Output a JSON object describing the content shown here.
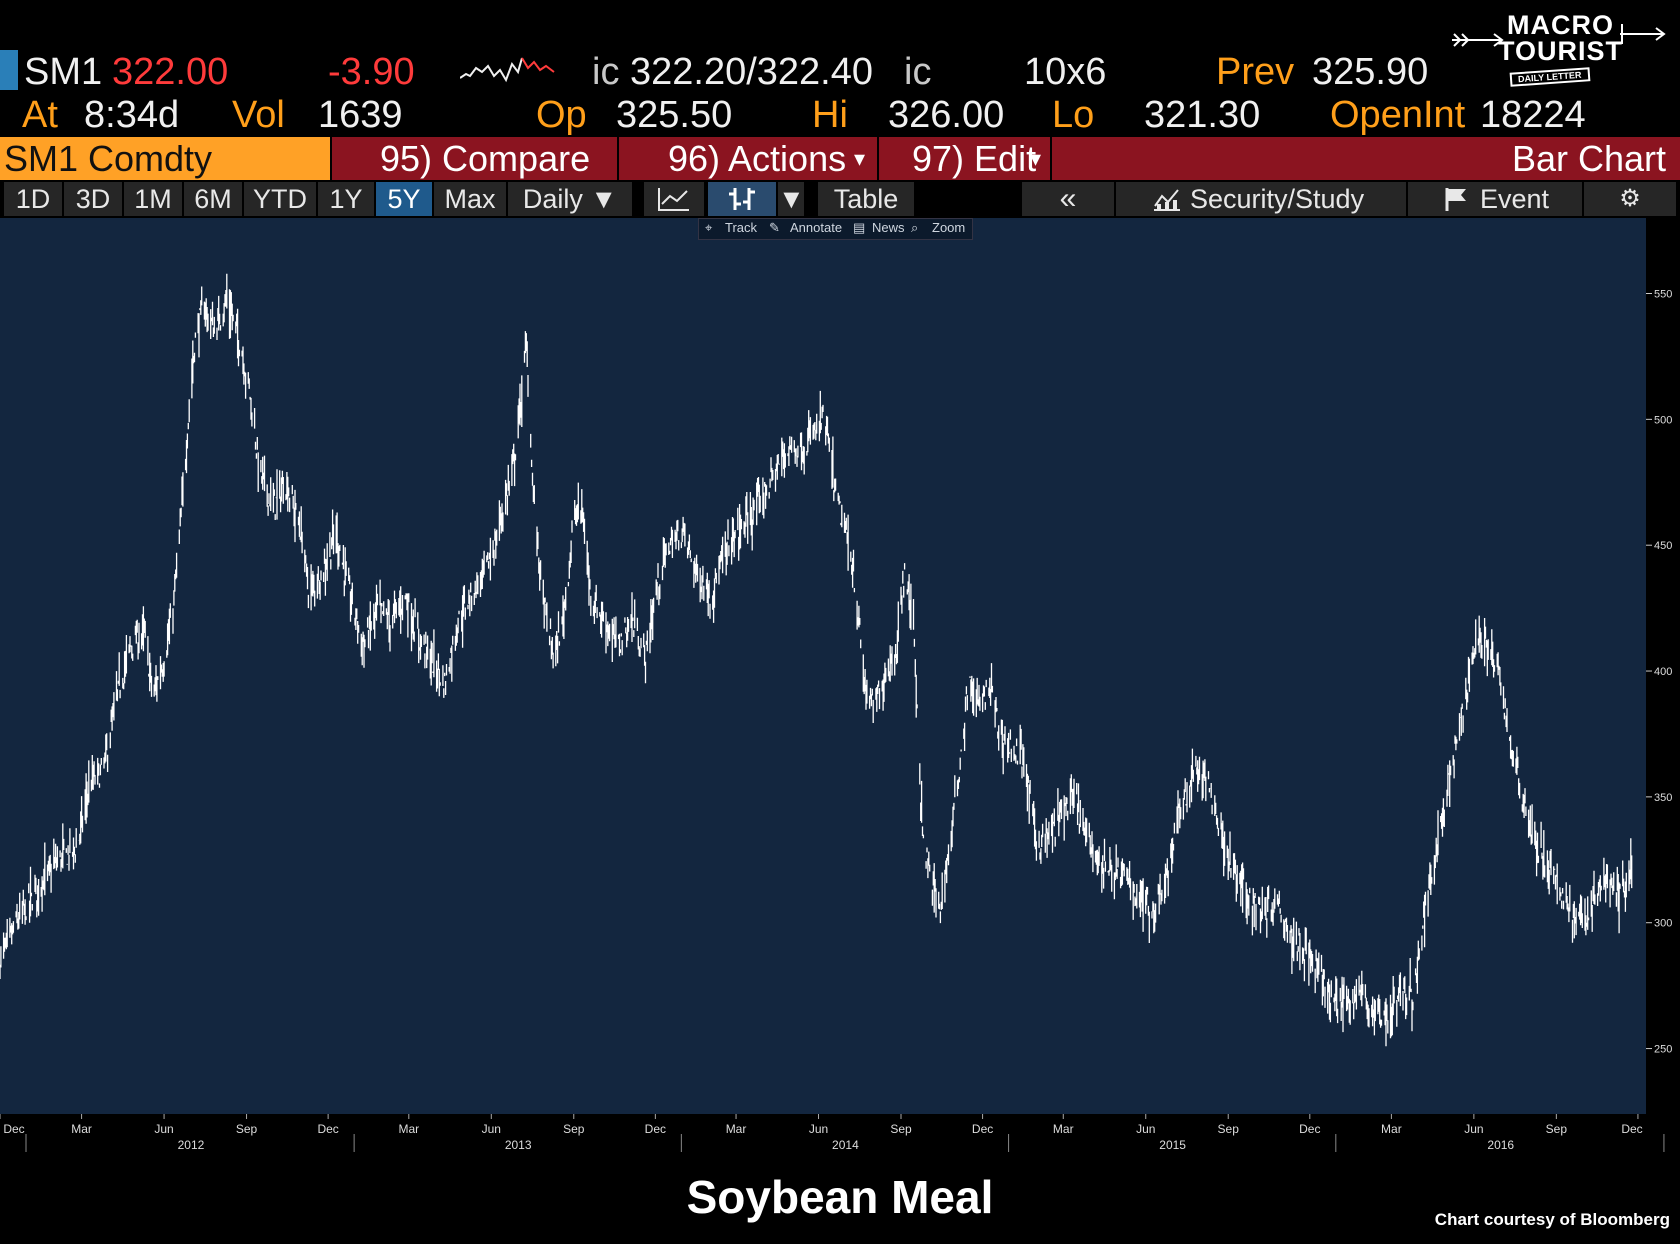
{
  "quote": {
    "ticker": "SM1",
    "last": "322.00",
    "change": "-3.90",
    "bid_prefix": "ic",
    "bid_ask": "322.20/322.40",
    "ask_suffix": "ic",
    "size": "10x6",
    "prev_label": "Prev",
    "prev": "325.90",
    "at_label": "At",
    "at_time": "8:34d",
    "vol_label": "Vol",
    "vol": "1639",
    "op_label": "Op",
    "op": "325.50",
    "hi_label": "Hi",
    "hi": "326.00",
    "lo_label": "Lo",
    "lo": "321.30",
    "oi_label": "OpenInt",
    "oi": "18224"
  },
  "logo": {
    "line1": "MACRO",
    "line2": "TOURIST",
    "line3": "DAILY LETTER"
  },
  "function_bar": {
    "security": "SM1 Comdty",
    "compare": "95) Compare",
    "actions": "96) Actions",
    "edit": "97) Edit",
    "chart_type": "Bar Chart"
  },
  "toolbar": {
    "ranges": [
      "1D",
      "3D",
      "1M",
      "6M",
      "YTD",
      "1Y",
      "5Y",
      "Max"
    ],
    "active_range": "5Y",
    "period": "Daily ▼",
    "table": "Table",
    "collapse": "«",
    "security_study": "Security/Study",
    "event": "Event"
  },
  "mini_toolbar": {
    "track": "Track",
    "annotate": "Annotate",
    "news": "News",
    "zoom": "Zoom"
  },
  "colors": {
    "plot_bg": "#13263f",
    "price_line": "#ffffff",
    "security_cell": "#ffa126",
    "function_bar": "#8b1420",
    "active_button": "#1f5a8c"
  },
  "chart_data": {
    "type": "bar",
    "title": "Soybean Meal",
    "credit": "Chart courtesy of Bloomberg",
    "y_ticks": [
      250,
      300,
      350,
      400,
      450,
      500,
      550
    ],
    "ylim": [
      224,
      580
    ],
    "xlim": [
      "2011-12-01",
      "2016-12-10"
    ],
    "x_month_labels": [
      {
        "d": "2011-12-01",
        "t": "Dec"
      },
      {
        "d": "2012-03-01",
        "t": "Mar"
      },
      {
        "d": "2012-06-01",
        "t": "Jun"
      },
      {
        "d": "2012-09-01",
        "t": "Sep"
      },
      {
        "d": "2012-12-01",
        "t": "Dec"
      },
      {
        "d": "2013-03-01",
        "t": "Mar"
      },
      {
        "d": "2013-06-01",
        "t": "Jun"
      },
      {
        "d": "2013-09-01",
        "t": "Sep"
      },
      {
        "d": "2013-12-01",
        "t": "Dec"
      },
      {
        "d": "2014-03-01",
        "t": "Mar"
      },
      {
        "d": "2014-06-01",
        "t": "Jun"
      },
      {
        "d": "2014-09-01",
        "t": "Sep"
      },
      {
        "d": "2014-12-01",
        "t": "Dec"
      },
      {
        "d": "2015-03-01",
        "t": "Mar"
      },
      {
        "d": "2015-06-01",
        "t": "Jun"
      },
      {
        "d": "2015-09-01",
        "t": "Sep"
      },
      {
        "d": "2015-12-01",
        "t": "Dec"
      },
      {
        "d": "2016-03-01",
        "t": "Mar"
      },
      {
        "d": "2016-06-01",
        "t": "Jun"
      },
      {
        "d": "2016-09-01",
        "t": "Sep"
      },
      {
        "d": "2016-12-01",
        "t": "Dec"
      }
    ],
    "x_year_labels": [
      {
        "d": "2012-07-01",
        "t": "2012"
      },
      {
        "d": "2013-07-01",
        "t": "2013"
      },
      {
        "d": "2014-07-01",
        "t": "2014"
      },
      {
        "d": "2015-07-01",
        "t": "2015"
      },
      {
        "d": "2016-07-01",
        "t": "2016"
      }
    ],
    "series": [
      {
        "points": [
          [
            "2011-12-01",
            285
          ],
          [
            "2011-12-20",
            300
          ],
          [
            "2012-01-15",
            315
          ],
          [
            "2012-02-05",
            325
          ],
          [
            "2012-02-25",
            330
          ],
          [
            "2012-03-10",
            355
          ],
          [
            "2012-03-25",
            360
          ],
          [
            "2012-04-10",
            390
          ],
          [
            "2012-04-25",
            410
          ],
          [
            "2012-05-10",
            415
          ],
          [
            "2012-05-20",
            390
          ],
          [
            "2012-06-01",
            405
          ],
          [
            "2012-06-10",
            420
          ],
          [
            "2012-06-20",
            460
          ],
          [
            "2012-06-28",
            500
          ],
          [
            "2012-07-05",
            530
          ],
          [
            "2012-07-15",
            545
          ],
          [
            "2012-07-28",
            535
          ],
          [
            "2012-08-10",
            548
          ],
          [
            "2012-08-25",
            530
          ],
          [
            "2012-09-05",
            510
          ],
          [
            "2012-09-15",
            480
          ],
          [
            "2012-10-01",
            465
          ],
          [
            "2012-10-15",
            475
          ],
          [
            "2012-11-01",
            455
          ],
          [
            "2012-11-10",
            430
          ],
          [
            "2012-11-25",
            440
          ],
          [
            "2012-12-10",
            455
          ],
          [
            "2012-12-25",
            430
          ],
          [
            "2013-01-10",
            410
          ],
          [
            "2013-01-25",
            425
          ],
          [
            "2013-02-10",
            420
          ],
          [
            "2013-02-25",
            430
          ],
          [
            "2013-03-10",
            415
          ],
          [
            "2013-03-25",
            405
          ],
          [
            "2013-04-10",
            395
          ],
          [
            "2013-04-25",
            420
          ],
          [
            "2013-05-10",
            430
          ],
          [
            "2013-05-25",
            440
          ],
          [
            "2013-06-05",
            450
          ],
          [
            "2013-06-15",
            465
          ],
          [
            "2013-06-25",
            480
          ],
          [
            "2013-07-05",
            510
          ],
          [
            "2013-07-10",
            530
          ],
          [
            "2013-07-18",
            470
          ],
          [
            "2013-07-28",
            430
          ],
          [
            "2013-08-10",
            405
          ],
          [
            "2013-08-20",
            420
          ],
          [
            "2013-09-01",
            460
          ],
          [
            "2013-09-10",
            465
          ],
          [
            "2013-09-20",
            430
          ],
          [
            "2013-10-05",
            420
          ],
          [
            "2013-10-20",
            410
          ],
          [
            "2013-11-05",
            420
          ],
          [
            "2013-11-20",
            405
          ],
          [
            "2013-12-01",
            430
          ],
          [
            "2013-12-15",
            450
          ],
          [
            "2014-01-01",
            455
          ],
          [
            "2014-01-15",
            440
          ],
          [
            "2014-02-01",
            430
          ],
          [
            "2014-02-15",
            445
          ],
          [
            "2014-03-01",
            455
          ],
          [
            "2014-03-15",
            460
          ],
          [
            "2014-04-01",
            470
          ],
          [
            "2014-04-15",
            480
          ],
          [
            "2014-05-01",
            490
          ],
          [
            "2014-05-15",
            488
          ],
          [
            "2014-05-28",
            495
          ],
          [
            "2014-06-08",
            500
          ],
          [
            "2014-06-20",
            470
          ],
          [
            "2014-07-01",
            455
          ],
          [
            "2014-07-10",
            440
          ],
          [
            "2014-07-22",
            395
          ],
          [
            "2014-08-01",
            385
          ],
          [
            "2014-08-15",
            400
          ],
          [
            "2014-08-28",
            410
          ],
          [
            "2014-09-05",
            440
          ],
          [
            "2014-09-15",
            420
          ],
          [
            "2014-09-25",
            335
          ],
          [
            "2014-10-05",
            315
          ],
          [
            "2014-10-15",
            305
          ],
          [
            "2014-10-25",
            330
          ],
          [
            "2014-11-05",
            360
          ],
          [
            "2014-11-15",
            395
          ],
          [
            "2014-11-28",
            385
          ],
          [
            "2014-12-10",
            395
          ],
          [
            "2014-12-20",
            375
          ],
          [
            "2015-01-01",
            370
          ],
          [
            "2015-01-15",
            365
          ],
          [
            "2015-02-01",
            330
          ],
          [
            "2015-02-15",
            335
          ],
          [
            "2015-03-01",
            345
          ],
          [
            "2015-03-15",
            350
          ],
          [
            "2015-03-25",
            335
          ],
          [
            "2015-04-10",
            325
          ],
          [
            "2015-04-25",
            320
          ],
          [
            "2015-05-10",
            318
          ],
          [
            "2015-05-25",
            310
          ],
          [
            "2015-06-10",
            305
          ],
          [
            "2015-06-25",
            320
          ],
          [
            "2015-07-10",
            345
          ],
          [
            "2015-07-25",
            360
          ],
          [
            "2015-08-10",
            355
          ],
          [
            "2015-08-25",
            335
          ],
          [
            "2015-09-10",
            318
          ],
          [
            "2015-09-25",
            310
          ],
          [
            "2015-10-10",
            305
          ],
          [
            "2015-10-25",
            310
          ],
          [
            "2015-11-10",
            295
          ],
          [
            "2015-11-25",
            290
          ],
          [
            "2015-12-10",
            280
          ],
          [
            "2015-12-25",
            270
          ],
          [
            "2016-01-10",
            268
          ],
          [
            "2016-01-25",
            272
          ],
          [
            "2016-02-10",
            265
          ],
          [
            "2016-02-25",
            262
          ],
          [
            "2016-03-10",
            272
          ],
          [
            "2016-03-25",
            270
          ],
          [
            "2016-04-10",
            310
          ],
          [
            "2016-04-25",
            340
          ],
          [
            "2016-05-10",
            365
          ],
          [
            "2016-05-25",
            395
          ],
          [
            "2016-06-05",
            415
          ],
          [
            "2016-06-15",
            410
          ],
          [
            "2016-06-28",
            400
          ],
          [
            "2016-07-10",
            375
          ],
          [
            "2016-07-25",
            350
          ],
          [
            "2016-08-10",
            330
          ],
          [
            "2016-08-25",
            320
          ],
          [
            "2016-09-10",
            310
          ],
          [
            "2016-09-25",
            300
          ],
          [
            "2016-10-10",
            305
          ],
          [
            "2016-10-25",
            318
          ],
          [
            "2016-11-10",
            310
          ],
          [
            "2016-11-25",
            322
          ]
        ]
      }
    ]
  }
}
